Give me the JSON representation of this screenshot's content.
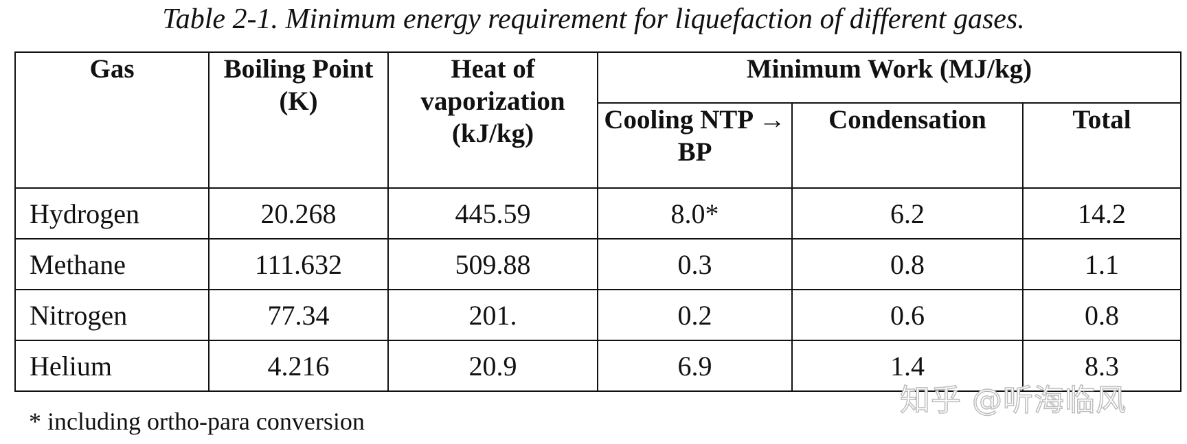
{
  "caption": "Table 2-1. Minimum energy requirement for liquefaction of different gases.",
  "table": {
    "headers": {
      "gas": "Gas",
      "boiling_point": "Boiling Point (K)",
      "heat_of_vaporization": "Heat of vaporization (kJ/kg)",
      "minimum_work": "Minimum Work (MJ/kg)",
      "cooling": "Cooling NTP → BP",
      "condensation": "Condensation",
      "total": "Total"
    },
    "rows": [
      [
        "Hydrogen",
        "20.268",
        "445.59",
        "8.0*",
        "6.2",
        "14.2"
      ],
      [
        "Methane",
        "111.632",
        "509.88",
        "0.3",
        "0.8",
        "1.1"
      ],
      [
        "Nitrogen",
        "77.34",
        "201.",
        "0.2",
        "0.6",
        "0.8"
      ],
      [
        "Helium",
        "4.216",
        "20.9",
        "6.9",
        "1.4",
        "8.3"
      ]
    ]
  },
  "footnote": "* including ortho-para conversion",
  "watermark": "知乎 @听海临风",
  "colors": {
    "text": "#111111",
    "border": "#111111",
    "background": "#ffffff",
    "watermark_outline": "#bdbdbd"
  }
}
